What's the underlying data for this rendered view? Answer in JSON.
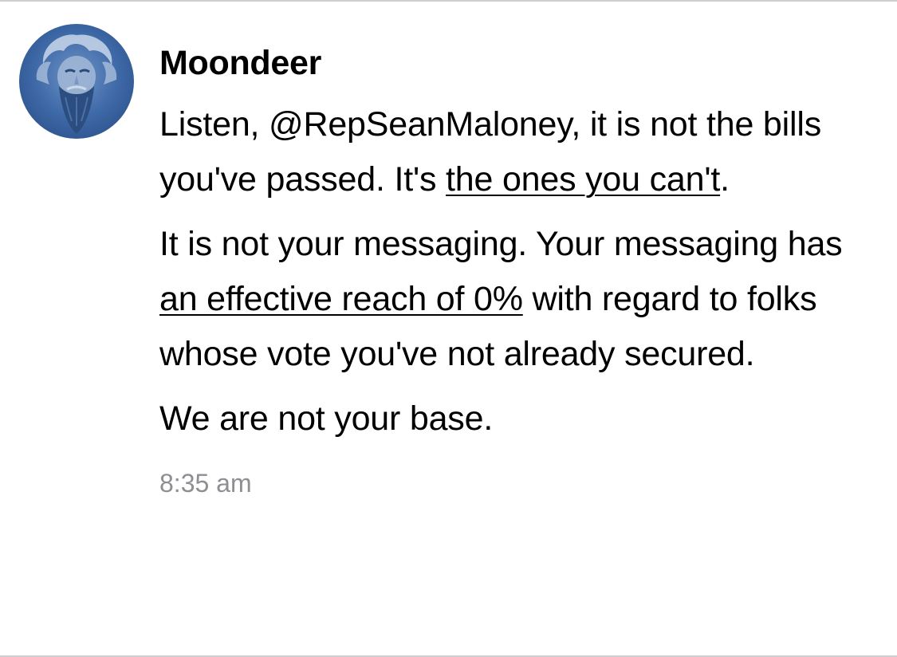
{
  "post": {
    "author": "Moondeer",
    "avatar_icon": "bearded-face-avatar",
    "paragraphs": [
      {
        "before": "Listen, @RepSeanMaloney, it is not the bills you've passed. It's ",
        "link": "the ones you can't",
        "after": "."
      },
      {
        "before": "It is not your messaging. Your messaging has ",
        "link": "an effective reach of 0%",
        "after": " with regard to folks whose vote you've not already secured."
      },
      {
        "text": "We are not your base."
      }
    ],
    "timestamp": "8:35 am"
  },
  "colors": {
    "text": "#000000",
    "timestamp": "#8e8e93",
    "avatar_bg": "#3f6aa8",
    "divider": "#cfcfd3"
  }
}
